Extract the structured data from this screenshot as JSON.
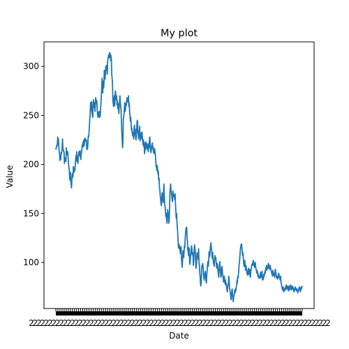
{
  "chart_data": {
    "type": "line",
    "title": "My plot",
    "xlabel": "Date",
    "ylabel": "Value",
    "ylim": [
      53,
      325
    ],
    "yticks": [
      100,
      150,
      200,
      250,
      300
    ],
    "xtick_labels_note": "",
    "grid": false,
    "legend": "none",
    "line_color": "#1f77b4",
    "series": [
      {
        "values": [
          215,
          217,
          218,
          220,
          219,
          228,
          222,
          226,
          218,
          214,
          210,
          204,
          209,
          205,
          212,
          211,
          213,
          218,
          226,
          216,
          215,
          213,
          213,
          201,
          207,
          204,
          205,
          203,
          217,
          213,
          210,
          213,
          213,
          206,
          201,
          197,
          195,
          186,
          184,
          192,
          185,
          180,
          176,
          184,
          190,
          191,
          187,
          198,
          193,
          192,
          196,
          194,
          198,
          205,
          209,
          204,
          213,
          203,
          208,
          201,
          206,
          210,
          213,
          209,
          211,
          214,
          208,
          205,
          211,
          212,
          216,
          220,
          218,
          223,
          218,
          225,
          219,
          224,
          227,
          226,
          225,
          223,
          225,
          215,
          216,
          216,
          221,
          229,
          228,
          232,
          239,
          246,
          250,
          263,
          257,
          255,
          264,
          253,
          250,
          248,
          261,
          266,
          261,
          258,
          263,
          254,
          261,
          268,
          264,
          262,
          265,
          255,
          251,
          248,
          253,
          251,
          254,
          248,
          250,
          249,
          257,
          262,
          270,
          277,
          288,
          275,
          273,
          285,
          278,
          281,
          296,
          294,
          287,
          292,
          300,
          296,
          301,
          299,
          292,
          305,
          308,
          310,
          312,
          309,
          314,
          312,
          313,
          306,
          311,
          307,
          292,
          288,
          283,
          265,
          262,
          259,
          267,
          270,
          260,
          272,
          275,
          269,
          266,
          270,
          261,
          265,
          257,
          262,
          258,
          252,
          259,
          264,
          270,
          263,
          260,
          255,
          244,
          232,
          225,
          217,
          223,
          246,
          248,
          252,
          258,
          263,
          254,
          257,
          262,
          260,
          265,
          268,
          266,
          265,
          263,
          270,
          259,
          262,
          253,
          250,
          244,
          248,
          240,
          235,
          237,
          232,
          229,
          233,
          231,
          226,
          238,
          240,
          230,
          236,
          228,
          225,
          229,
          237,
          244,
          245,
          233,
          231,
          226,
          232,
          235,
          239,
          224,
          230,
          229,
          232,
          226,
          233,
          228,
          224,
          220,
          225,
          218,
          222,
          211,
          214,
          216,
          223,
          222,
          218,
          216,
          221,
          215,
          218,
          213,
          221,
          217,
          225,
          228,
          222,
          214,
          212,
          214,
          218,
          220,
          222,
          216,
          218,
          212,
          214,
          211,
          216,
          213,
          210,
          205,
          198,
          197,
          194,
          199,
          195,
          190,
          193,
          184,
          186,
          176,
          174,
          168,
          165,
          160,
          158,
          166,
          171,
          163,
          165,
          161,
          173,
          180,
          168,
          159,
          158,
          152,
          147,
          150,
          145,
          140,
          146,
          154,
          151,
          149,
          140,
          142,
          153,
          172,
          175,
          180,
          174,
          170,
          168,
          163,
          162,
          173,
          171,
          167,
          169,
          168,
          164,
          170,
          159,
          152,
          145,
          150,
          141,
          135,
          130,
          122,
          115,
          119,
          114,
          117,
          113,
          109,
          110,
          116,
          104,
          99,
          95,
          102,
          112,
          107,
          105,
          111,
          117,
          115,
          125,
          130,
          135,
          133,
          136,
          125,
          122,
          112,
          114,
          107,
          115,
          114,
          100,
          98,
          104,
          108,
          112,
          117,
          114,
          108,
          110,
          106,
          97,
          103,
          112,
          118,
          115,
          111,
          102,
          94,
          97,
          105,
          110,
          106,
          108,
          103,
          114,
          99,
          98,
          90,
          86,
          79,
          76,
          80,
          93,
          97,
          95,
          99,
          95,
          88,
          85,
          82,
          87,
          90,
          91,
          85,
          81,
          79,
          88,
          92,
          98,
          101,
          96,
          101,
          111,
          109,
          106,
          113,
          117,
          120,
          116,
          112,
          107,
          104,
          110,
          102,
          99,
          98,
          96,
          104,
          107,
          103,
          105,
          101,
          96,
          94,
          99,
          97,
          91,
          88,
          85,
          92,
          98,
          101,
          95,
          89,
          85,
          87,
          94,
          96,
          89,
          87,
          84,
          80,
          83,
          86,
          81,
          78,
          82,
          77,
          79,
          75,
          72,
          70,
          74,
          77,
          79,
          86,
          82,
          73,
          72,
          69,
          66,
          62,
          65,
          70,
          73,
          69,
          63,
          60,
          65,
          66,
          68,
          72,
          69,
          73,
          71,
          75,
          77,
          82,
          79,
          86,
          84,
          88,
          94,
          99,
          102,
          108,
          113,
          116,
          118,
          119,
          116,
          111,
          107,
          110,
          104,
          99,
          96,
          99,
          102,
          96,
          92,
          97,
          94,
          92,
          88,
          90,
          87,
          92,
          94,
          88,
          91,
          93,
          86,
          85,
          91,
          93,
          96,
          98,
          97,
          99,
          101,
          102,
          97,
          99,
          95,
          99,
          100,
          96,
          93,
          92,
          89,
          92,
          90,
          86,
          88,
          84,
          86,
          84,
          86,
          84,
          90,
          89,
          85,
          87,
          91,
          83,
          82,
          86,
          83,
          88,
          86,
          89,
          91,
          89,
          94,
          93,
          97,
          92,
          95,
          96,
          94,
          99,
          98,
          96,
          93,
          95,
          97,
          94,
          93,
          91,
          89,
          88,
          86,
          92,
          90,
          87,
          89,
          86,
          85,
          91,
          93,
          90,
          87,
          84,
          86,
          85,
          83,
          85,
          88,
          89,
          87,
          84,
          83,
          82,
          86,
          80,
          78,
          76,
          74,
          72,
          73,
          75,
          70,
          72,
          71,
          73,
          74,
          72,
          75,
          77,
          74,
          73,
          75,
          76,
          73,
          71,
          74,
          76,
          72,
          74,
          73,
          77,
          74,
          72,
          74,
          76,
          73,
          75,
          74,
          71,
          70,
          73,
          72,
          75,
          74,
          73,
          71,
          72,
          73,
          71,
          69,
          72,
          71,
          73,
          75,
          74,
          72,
          70,
          72,
          75,
          73,
          75,
          76
        ]
      }
    ]
  }
}
